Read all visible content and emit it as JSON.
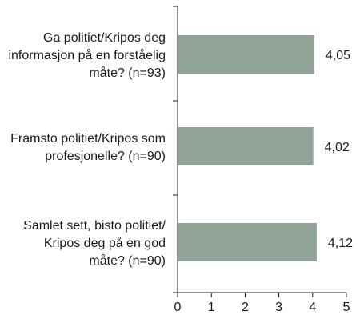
{
  "chart_data": {
    "type": "bar",
    "orientation": "horizontal",
    "categories": [
      [
        "Ga politiet/Kripos deg",
        "informasjon på en forståelig",
        "måte? (n=93)"
      ],
      [
        "Framsto politiet/Kripos som",
        "profesjonelle? (n=90)"
      ],
      [
        "Samlet sett, bisto politiet/",
        "Kripos deg på en god",
        "måte? (n=90)"
      ]
    ],
    "values": [
      4.05,
      4.02,
      4.12
    ],
    "value_labels": [
      "4,05",
      "4,02",
      "4,12"
    ],
    "xlim": [
      0,
      5
    ],
    "xticks": [
      0,
      1,
      2,
      3,
      4,
      5
    ],
    "xtick_labels": [
      "0",
      "1",
      "2",
      "3",
      "4",
      "5"
    ],
    "bar_color": "#8fa497",
    "grid": false,
    "legend": "none"
  }
}
